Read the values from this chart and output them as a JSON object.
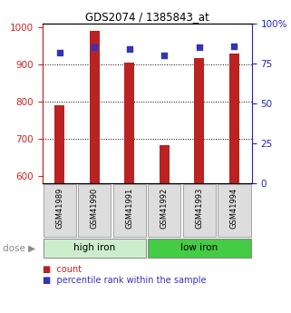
{
  "title": "GDS2074 / 1385843_at",
  "samples": [
    "GSM41989",
    "GSM41990",
    "GSM41991",
    "GSM41992",
    "GSM41993",
    "GSM41994"
  ],
  "counts": [
    790,
    990,
    905,
    683,
    918,
    928
  ],
  "percentiles": [
    82,
    85,
    84,
    80,
    85,
    86
  ],
  "ylim_left": [
    580,
    1010
  ],
  "ylim_right": [
    0,
    100
  ],
  "yticks_left": [
    600,
    700,
    800,
    900,
    1000
  ],
  "yticks_right": [
    0,
    25,
    50,
    75,
    100
  ],
  "ytick_labels_right": [
    "0",
    "25",
    "50",
    "75",
    "100%"
  ],
  "bar_color": "#BB2222",
  "dot_color": "#3333BB",
  "groups": [
    {
      "label": "high iron",
      "indices": [
        0,
        1,
        2
      ],
      "color": "#CCEECC"
    },
    {
      "label": "low iron",
      "indices": [
        3,
        4,
        5
      ],
      "color": "#44CC44"
    }
  ],
  "dose_label": "dose",
  "legend_count": "count",
  "legend_percentile": "percentile rank within the sample",
  "bar_bottom": 580,
  "left_axis_color": "#CC2222",
  "right_axis_color": "#2222BB",
  "grid_dotted_at": [
    700,
    800,
    900
  ]
}
